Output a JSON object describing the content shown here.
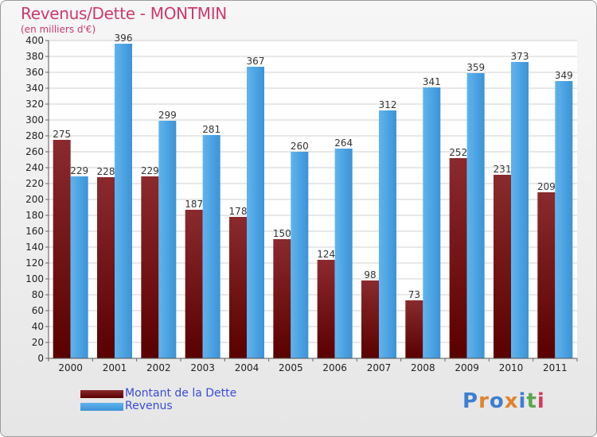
{
  "title": "Revenus/Dette - MONTMIN",
  "subtitle": "(en milliers d'€)",
  "logo": "Proxiti",
  "chart_data": {
    "type": "bar",
    "title": "Revenus/Dette - MONTMIN",
    "subtitle": "(en milliers d'€)",
    "categories": [
      "2000",
      "2001",
      "2002",
      "2003",
      "2004",
      "2005",
      "2006",
      "2007",
      "2008",
      "2009",
      "2010",
      "2011"
    ],
    "series": [
      {
        "name": "Montant de la Dette",
        "values": [
          275,
          228,
          229,
          187,
          178,
          150,
          124,
          98,
          73,
          252,
          231,
          209
        ],
        "color": "#7a0f14"
      },
      {
        "name": "Revenus",
        "values": [
          229,
          396,
          299,
          281,
          367,
          260,
          264,
          312,
          341,
          359,
          373,
          349
        ],
        "color": "#4aa3e6"
      }
    ],
    "ylim": [
      0,
      400
    ],
    "ytick_step": 20,
    "grid": true,
    "data_labels": true,
    "legend_position": "bottom-left"
  }
}
